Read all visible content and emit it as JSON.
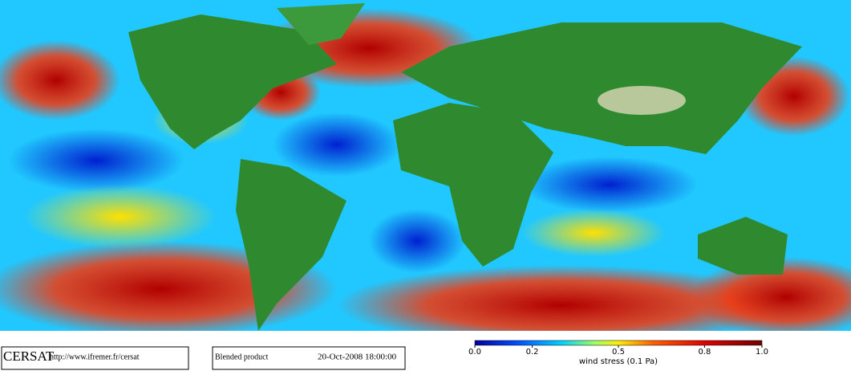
{
  "footer": {
    "logo": "CERSAT",
    "url": "http://www.ifremer.fr/cersat",
    "product": "Blended product",
    "date": "20-Oct-2008 18:00:00"
  },
  "colorbar": {
    "label": "wind stress (0.1 Pa)",
    "ticks": [
      {
        "value": 0,
        "label": "0.0"
      },
      0.2,
      0.5,
      0.8,
      {
        "value": 1,
        "label": "1.0"
      }
    ]
  }
}
